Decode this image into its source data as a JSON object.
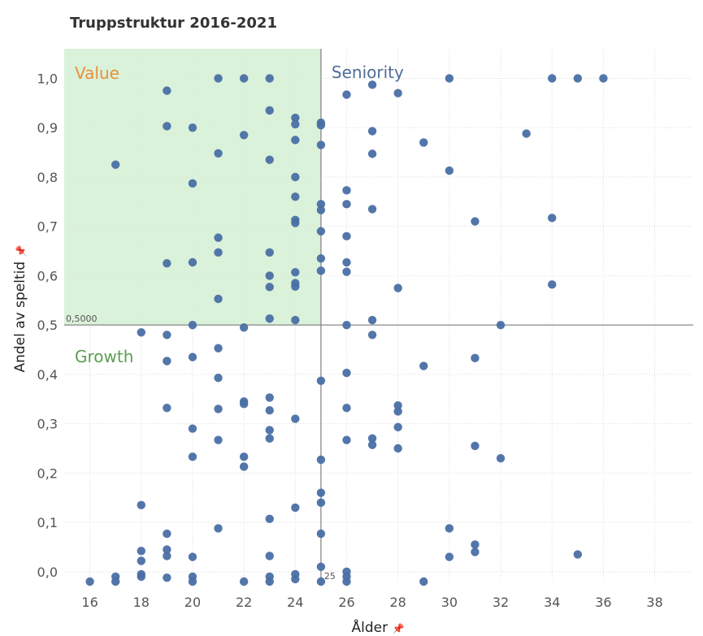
{
  "chart_data": {
    "type": "scatter",
    "title": "Truppstruktur 2016-2021",
    "xlabel": "Ålder",
    "ylabel": "Andel av speltid",
    "x_axis_pin": "📌",
    "y_axis_pin": "📌",
    "xlim": [
      15,
      39.5
    ],
    "ylim": [
      -0.02,
      1.06
    ],
    "xticks": [
      16,
      18,
      20,
      22,
      24,
      26,
      28,
      30,
      32,
      34,
      36,
      38
    ],
    "xtick_labels": [
      "16",
      "18",
      "20",
      "22",
      "24",
      "26",
      "28",
      "30",
      "32",
      "34",
      "36",
      "38"
    ],
    "yticks": [
      0.0,
      0.1,
      0.2,
      0.3,
      0.4,
      0.5,
      0.6,
      0.7,
      0.8,
      0.9,
      1.0
    ],
    "ytick_labels": [
      "0,0",
      "0,1",
      "0,2",
      "0,3",
      "0,4",
      "0,5",
      "0,6",
      "0,7",
      "0,8",
      "0,9",
      "1,0"
    ],
    "grid": true,
    "reference_lines": {
      "x": 25,
      "x_label": "25",
      "y": 0.5,
      "y_label": "0,5000"
    },
    "quadrants": [
      {
        "name": "Value",
        "color": "#e8913a"
      },
      {
        "name": "Seniority",
        "color": "#4e6d9a"
      },
      {
        "name": "Growth",
        "color": "#5a9e4f"
      }
    ],
    "value_region_color": "#d6efd6",
    "marker_color": "#4a6fa5",
    "points": [
      [
        16,
        -0.02
      ],
      [
        17,
        0.825
      ],
      [
        17,
        -0.01
      ],
      [
        17,
        -0.02
      ],
      [
        18,
        0.485
      ],
      [
        18,
        0.135
      ],
      [
        18,
        0.042
      ],
      [
        18,
        0.022
      ],
      [
        18,
        -0.005
      ],
      [
        18,
        -0.01
      ],
      [
        19,
        0.975
      ],
      [
        19,
        0.903
      ],
      [
        19,
        0.625
      ],
      [
        19,
        0.48
      ],
      [
        19,
        0.427
      ],
      [
        19,
        0.332
      ],
      [
        19,
        0.077
      ],
      [
        19,
        0.045
      ],
      [
        19,
        0.032
      ],
      [
        19,
        -0.012
      ],
      [
        20,
        0.9
      ],
      [
        20,
        0.787
      ],
      [
        20,
        0.627
      ],
      [
        20,
        0.5
      ],
      [
        20,
        0.435
      ],
      [
        20,
        0.29
      ],
      [
        20,
        0.233
      ],
      [
        20,
        0.03
      ],
      [
        20,
        -0.01
      ],
      [
        20,
        -0.02
      ],
      [
        21,
        1.0
      ],
      [
        21,
        0.848
      ],
      [
        21,
        0.677
      ],
      [
        21,
        0.647
      ],
      [
        21,
        0.553
      ],
      [
        21,
        0.453
      ],
      [
        21,
        0.393
      ],
      [
        21,
        0.33
      ],
      [
        21,
        0.267
      ],
      [
        21,
        0.088
      ],
      [
        22,
        1.0
      ],
      [
        22,
        0.885
      ],
      [
        22,
        0.495
      ],
      [
        22,
        0.345
      ],
      [
        22,
        0.34
      ],
      [
        22,
        0.233
      ],
      [
        22,
        0.213
      ],
      [
        22,
        -0.02
      ],
      [
        23,
        1.0
      ],
      [
        23,
        0.935
      ],
      [
        23,
        0.835
      ],
      [
        23,
        0.647
      ],
      [
        23,
        0.6
      ],
      [
        23,
        0.577
      ],
      [
        23,
        0.513
      ],
      [
        23,
        0.353
      ],
      [
        23,
        0.327
      ],
      [
        23,
        0.287
      ],
      [
        23,
        0.27
      ],
      [
        23,
        0.107
      ],
      [
        23,
        0.032
      ],
      [
        23,
        -0.01
      ],
      [
        23,
        -0.02
      ],
      [
        24,
        0.92
      ],
      [
        24,
        0.907
      ],
      [
        24,
        0.875
      ],
      [
        24,
        0.8
      ],
      [
        24,
        0.76
      ],
      [
        24,
        0.713
      ],
      [
        24,
        0.707
      ],
      [
        24,
        0.607
      ],
      [
        24,
        0.585
      ],
      [
        24,
        0.578
      ],
      [
        24,
        0.51
      ],
      [
        24,
        0.31
      ],
      [
        24,
        0.13
      ],
      [
        24,
        -0.005
      ],
      [
        24,
        -0.015
      ],
      [
        25,
        0.91
      ],
      [
        25,
        0.905
      ],
      [
        25,
        0.865
      ],
      [
        25,
        0.745
      ],
      [
        25,
        0.733
      ],
      [
        25,
        0.69
      ],
      [
        25,
        0.635
      ],
      [
        25,
        0.61
      ],
      [
        25,
        0.387
      ],
      [
        25,
        0.227
      ],
      [
        25,
        0.16
      ],
      [
        25,
        0.14
      ],
      [
        25,
        0.077
      ],
      [
        25,
        0.01
      ],
      [
        25,
        -0.02
      ],
      [
        26,
        0.967
      ],
      [
        26,
        0.773
      ],
      [
        26,
        0.745
      ],
      [
        26,
        0.68
      ],
      [
        26,
        0.627
      ],
      [
        26,
        0.608
      ],
      [
        26,
        0.5
      ],
      [
        26,
        0.403
      ],
      [
        26,
        0.332
      ],
      [
        26,
        0.267
      ],
      [
        26,
        0.0
      ],
      [
        26,
        -0.01
      ],
      [
        26,
        -0.02
      ],
      [
        27,
        0.987
      ],
      [
        27,
        0.893
      ],
      [
        27,
        0.847
      ],
      [
        27,
        0.735
      ],
      [
        27,
        0.51
      ],
      [
        27,
        0.48
      ],
      [
        27,
        0.27
      ],
      [
        27,
        0.257
      ],
      [
        28,
        0.97
      ],
      [
        28,
        0.575
      ],
      [
        28,
        0.337
      ],
      [
        28,
        0.325
      ],
      [
        28,
        0.293
      ],
      [
        28,
        0.25
      ],
      [
        29,
        0.87
      ],
      [
        29,
        0.417
      ],
      [
        29,
        -0.02
      ],
      [
        30,
        1.0
      ],
      [
        30,
        0.813
      ],
      [
        30,
        0.088
      ],
      [
        30,
        0.03
      ],
      [
        31,
        0.71
      ],
      [
        31,
        0.433
      ],
      [
        31,
        0.255
      ],
      [
        31,
        0.055
      ],
      [
        31,
        0.04
      ],
      [
        32,
        0.5
      ],
      [
        32,
        0.23
      ],
      [
        33,
        0.888
      ],
      [
        34,
        1.0
      ],
      [
        34,
        0.717
      ],
      [
        34,
        0.582
      ],
      [
        35,
        1.0
      ],
      [
        35,
        0.035
      ],
      [
        36,
        1.0
      ]
    ]
  }
}
